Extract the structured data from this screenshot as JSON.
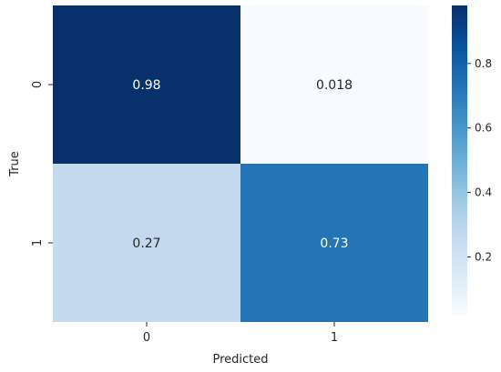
{
  "chart_data": {
    "type": "heatmap",
    "title": "",
    "xlabel": "Predicted",
    "ylabel": "True",
    "x_categories": [
      "0",
      "1"
    ],
    "y_categories": [
      "0",
      "1"
    ],
    "values": [
      [
        0.98,
        0.018
      ],
      [
        0.27,
        0.73
      ]
    ],
    "annotations": [
      [
        "0.98",
        "0.018"
      ],
      [
        "0.27",
        "0.73"
      ]
    ],
    "colormap": "Blues",
    "vmin": 0.018,
    "vmax": 0.98,
    "colorbar": {
      "ticks": [
        0.2,
        0.4,
        0.6,
        0.8
      ],
      "tick_labels": [
        "0.2",
        "0.4",
        "0.6",
        "0.8"
      ]
    }
  }
}
